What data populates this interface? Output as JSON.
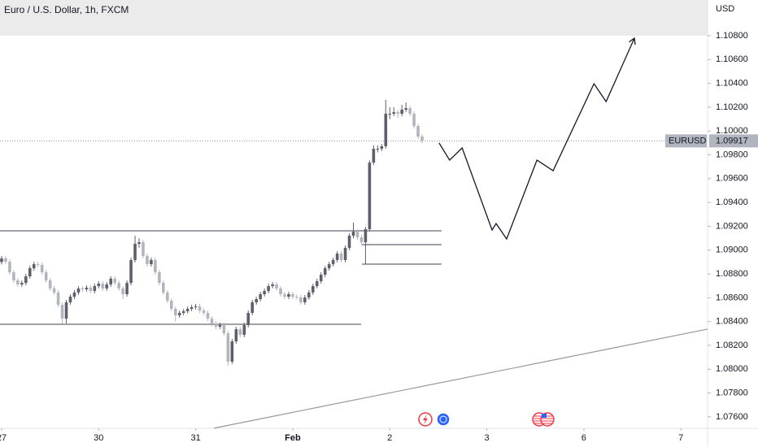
{
  "chart_data": {
    "type": "candlestick",
    "title": "Euro / U.S. Dollar, 1h, FXCM",
    "currency": "USD",
    "symbol": "EURUSD",
    "last_price": {
      "value": 1.09917,
      "label": "1.09917"
    },
    "up_color": "#5d606b",
    "down_color": "#b2b5be",
    "grid": false,
    "xlim": [
      -0.4,
      174.6
    ],
    "ylim": [
      1.07504,
      1.111
    ],
    "xticks": [
      {
        "value": 0,
        "label": "27"
      },
      {
        "value": 24,
        "label": "30"
      },
      {
        "value": 48,
        "label": "31"
      },
      {
        "value": 72,
        "label": "Feb"
      },
      {
        "value": 96,
        "label": "2"
      },
      {
        "value": 120,
        "label": "3"
      },
      {
        "value": 144,
        "label": "6"
      },
      {
        "value": 168,
        "label": "7"
      }
    ],
    "yticks": [
      {
        "value": 1.076,
        "label": "1.07600"
      },
      {
        "value": 1.078,
        "label": "1.07800"
      },
      {
        "value": 1.08,
        "label": "1.08000"
      },
      {
        "value": 1.082,
        "label": "1.08200"
      },
      {
        "value": 1.084,
        "label": "1.08400"
      },
      {
        "value": 1.086,
        "label": "1.08600"
      },
      {
        "value": 1.088,
        "label": "1.08800"
      },
      {
        "value": 1.09,
        "label": "1.09000"
      },
      {
        "value": 1.092,
        "label": "1.09200"
      },
      {
        "value": 1.094,
        "label": "1.09400"
      },
      {
        "value": 1.096,
        "label": "1.09600"
      },
      {
        "value": 1.098,
        "label": "1.09800"
      },
      {
        "value": 1.1,
        "label": "1.10000"
      },
      {
        "value": 1.102,
        "label": "1.10200"
      },
      {
        "value": 1.104,
        "label": "1.10400"
      },
      {
        "value": 1.106,
        "label": "1.10600"
      },
      {
        "value": 1.108,
        "label": "1.10800"
      }
    ],
    "x": [
      0,
      1,
      2,
      3,
      4,
      5,
      6,
      7,
      8,
      9,
      10,
      11,
      12,
      13,
      14,
      15,
      16,
      17,
      18,
      19,
      20,
      21,
      22,
      23,
      24,
      25,
      26,
      27,
      28,
      29,
      30,
      31,
      32,
      33,
      34,
      35,
      36,
      37,
      38,
      39,
      40,
      41,
      42,
      43,
      44,
      45,
      46,
      47,
      48,
      49,
      50,
      51,
      52,
      53,
      54,
      55,
      56,
      57,
      58,
      59,
      60,
      61,
      62,
      63,
      64,
      65,
      66,
      67,
      68,
      69,
      70,
      71,
      72,
      73,
      74,
      75,
      76,
      77,
      78,
      79,
      80,
      81,
      82,
      83,
      84,
      85,
      86,
      87,
      88,
      89,
      90,
      91,
      92,
      93,
      94,
      95,
      96,
      97,
      98,
      99,
      100,
      101,
      102,
      103,
      104
    ],
    "ohlc": [
      [
        1.089,
        1.0895,
        1.0888,
        1.0893
      ],
      [
        1.0893,
        1.0895,
        1.08883,
        1.08903
      ],
      [
        1.08903,
        1.08923,
        1.08794,
        1.08814
      ],
      [
        1.08814,
        1.08834,
        1.08726,
        1.08746
      ],
      [
        1.08746,
        1.08766,
        1.08692,
        1.08712
      ],
      [
        1.08712,
        1.08745,
        1.08692,
        1.08725
      ],
      [
        1.08725,
        1.088,
        1.08705,
        1.0878
      ],
      [
        1.0878,
        1.08868,
        1.0876,
        1.08848
      ],
      [
        1.08848,
        1.08902,
        1.08828,
        1.08882
      ],
      [
        1.08882,
        1.08902,
        1.08856,
        1.08876
      ],
      [
        1.08876,
        1.08896,
        1.08794,
        1.08814
      ],
      [
        1.08814,
        1.08834,
        1.08726,
        1.08746
      ],
      [
        1.08746,
        1.08766,
        1.08658,
        1.08678
      ],
      [
        1.08678,
        1.08698,
        1.08624,
        1.08644
      ],
      [
        1.08644,
        1.08664,
        1.08521,
        1.08541
      ],
      [
        1.08541,
        1.08561,
        1.08384,
        1.08425
      ],
      [
        1.08425,
        1.08582,
        1.08384,
        1.08562
      ],
      [
        1.08562,
        1.08629,
        1.08542,
        1.08609
      ],
      [
        1.08609,
        1.08664,
        1.08589,
        1.08644
      ],
      [
        1.08644,
        1.08698,
        1.08624,
        1.08678
      ],
      [
        1.08678,
        1.08698,
        1.08651,
        1.08671
      ],
      [
        1.08671,
        1.08705,
        1.08651,
        1.08685
      ],
      [
        1.08685,
        1.08705,
        1.08637,
        1.08657
      ],
      [
        1.08657,
        1.08718,
        1.08637,
        1.08698
      ],
      [
        1.08698,
        1.08739,
        1.08678,
        1.08719
      ],
      [
        1.08719,
        1.08739,
        1.08658,
        1.08678
      ],
      [
        1.08678,
        1.08732,
        1.08658,
        1.08712
      ],
      [
        1.08712,
        1.0878,
        1.08692,
        1.0876
      ],
      [
        1.0876,
        1.0878,
        1.08705,
        1.08725
      ],
      [
        1.08725,
        1.08745,
        1.08658,
        1.08678
      ],
      [
        1.08678,
        1.08698,
        1.08589,
        1.0863
      ],
      [
        1.0863,
        1.08745,
        1.0861,
        1.08725
      ],
      [
        1.08725,
        1.08937,
        1.08705,
        1.08917
      ],
      [
        1.08917,
        1.09121,
        1.08897,
        1.09053
      ],
      [
        1.09053,
        1.091,
        1.0902,
        1.09066
      ],
      [
        1.09066,
        1.09086,
        1.08931,
        1.08951
      ],
      [
        1.08951,
        1.08971,
        1.08862,
        1.08882
      ],
      [
        1.08882,
        1.08937,
        1.08862,
        1.08917
      ],
      [
        1.08917,
        1.08937,
        1.08794,
        1.08814
      ],
      [
        1.08814,
        1.08834,
        1.08705,
        1.08725
      ],
      [
        1.08725,
        1.08745,
        1.08624,
        1.08644
      ],
      [
        1.08644,
        1.08664,
        1.08555,
        1.08575
      ],
      [
        1.08575,
        1.08595,
        1.08487,
        1.08507
      ],
      [
        1.08507,
        1.08527,
        1.084,
        1.08453
      ],
      [
        1.08453,
        1.08493,
        1.08433,
        1.08473
      ],
      [
        1.08473,
        1.08507,
        1.08453,
        1.08487
      ],
      [
        1.08487,
        1.08527,
        1.08467,
        1.08507
      ],
      [
        1.08507,
        1.08541,
        1.08487,
        1.08521
      ],
      [
        1.08521,
        1.08548,
        1.08501,
        1.08528
      ],
      [
        1.08528,
        1.08548,
        1.08473,
        1.08493
      ],
      [
        1.08493,
        1.08513,
        1.08453,
        1.08473
      ],
      [
        1.08473,
        1.08493,
        1.08405,
        1.08425
      ],
      [
        1.08425,
        1.08445,
        1.08364,
        1.08384
      ],
      [
        1.08384,
        1.08404,
        1.08337,
        1.08357
      ],
      [
        1.08357,
        1.08391,
        1.08337,
        1.08371
      ],
      [
        1.08371,
        1.08391,
        1.08282,
        1.08302
      ],
      [
        1.08302,
        1.08322,
        1.0803,
        1.08064
      ],
      [
        1.08064,
        1.08254,
        1.08044,
        1.08234
      ],
      [
        1.08234,
        1.08356,
        1.08214,
        1.08336
      ],
      [
        1.08336,
        1.08356,
        1.08269,
        1.08289
      ],
      [
        1.08289,
        1.08391,
        1.08269,
        1.08371
      ],
      [
        1.08371,
        1.08493,
        1.08351,
        1.08473
      ],
      [
        1.08473,
        1.08582,
        1.08453,
        1.08562
      ],
      [
        1.08562,
        1.08609,
        1.08542,
        1.08589
      ],
      [
        1.08589,
        1.0865,
        1.08569,
        1.0863
      ],
      [
        1.0863,
        1.08677,
        1.0861,
        1.08657
      ],
      [
        1.08657,
        1.08718,
        1.08637,
        1.08698
      ],
      [
        1.08698,
        1.08732,
        1.08678,
        1.08712
      ],
      [
        1.08712,
        1.08732,
        1.08658,
        1.08678
      ],
      [
        1.08678,
        1.08698,
        1.0861,
        1.0863
      ],
      [
        1.0863,
        1.0865,
        1.08589,
        1.08609
      ],
      [
        1.08609,
        1.0865,
        1.08589,
        1.0863
      ],
      [
        1.0863,
        1.0865,
        1.08589,
        1.08609
      ],
      [
        1.08609,
        1.08629,
        1.08583,
        1.08603
      ],
      [
        1.08603,
        1.08623,
        1.08542,
        1.08562
      ],
      [
        1.08562,
        1.08623,
        1.08542,
        1.08603
      ],
      [
        1.08603,
        1.08664,
        1.08583,
        1.08644
      ],
      [
        1.08644,
        1.08718,
        1.08624,
        1.08698
      ],
      [
        1.08698,
        1.08759,
        1.08678,
        1.08739
      ],
      [
        1.08739,
        1.08814,
        1.08719,
        1.08794
      ],
      [
        1.08794,
        1.08868,
        1.08774,
        1.08848
      ],
      [
        1.08848,
        1.08902,
        1.08828,
        1.08882
      ],
      [
        1.08882,
        1.08937,
        1.08862,
        1.08917
      ],
      [
        1.08917,
        1.08991,
        1.08897,
        1.08971
      ],
      [
        1.08971,
        1.08991,
        1.08897,
        1.08917
      ],
      [
        1.08917,
        1.09039,
        1.08897,
        1.09019
      ],
      [
        1.09019,
        1.09141,
        1.08999,
        1.09121
      ],
      [
        1.09121,
        1.0923,
        1.09101,
        1.09155
      ],
      [
        1.09155,
        1.09175,
        1.09087,
        1.09107
      ],
      [
        1.09107,
        1.09127,
        1.09046,
        1.09066
      ],
      [
        1.09066,
        1.09196,
        1.08882,
        1.09176
      ],
      [
        1.09176,
        1.09755,
        1.09156,
        1.09735
      ],
      [
        1.09735,
        1.0988,
        1.09715,
        1.09851
      ],
      [
        1.09851,
        1.0988,
        1.0982,
        1.09851
      ],
      [
        1.09851,
        1.09892,
        1.09831,
        1.09872
      ],
      [
        1.09872,
        1.10262,
        1.09852,
        1.10145
      ],
      [
        1.10145,
        1.102,
        1.101,
        1.10145
      ],
      [
        1.10145,
        1.102,
        1.10125,
        1.10158
      ],
      [
        1.10158,
        1.10178,
        1.1011,
        1.10145
      ],
      [
        1.10145,
        1.1022,
        1.10125,
        1.10179
      ],
      [
        1.10179,
        1.1024,
        1.10159,
        1.10192
      ],
      [
        1.10192,
        1.10212,
        1.10125,
        1.10145
      ],
      [
        1.10145,
        1.10165,
        1.10022,
        1.10042
      ],
      [
        1.10042,
        1.10062,
        1.09934,
        1.09954
      ],
      [
        1.09954,
        1.09974,
        1.09897,
        1.09917
      ]
    ],
    "horizontal_lines": [
      {
        "price": 1.09162,
        "from": -0.4,
        "to": 108.8
      },
      {
        "price": 1.09046,
        "from": 89.1,
        "to": 108.8
      },
      {
        "price": 1.08882,
        "from": 89.1,
        "to": 108.8
      },
      {
        "price": 1.08377,
        "from": -0.4,
        "to": 88.9
      }
    ],
    "trend_line": {
      "x": [
        52.5,
        174.6
      ],
      "y": [
        1.07505,
        1.08337
      ]
    },
    "projection": {
      "x": [
        108.2,
        110.8,
        113.9,
        121.3,
        122.3,
        124.9,
        132.4,
        136.4,
        146.5,
        149.5,
        156.5
      ],
      "y": [
        1.09899,
        1.09756,
        1.09858,
        1.09169,
        1.09223,
        1.09094,
        1.09756,
        1.09667,
        1.10397,
        1.10247,
        1.10779
      ]
    }
  }
}
